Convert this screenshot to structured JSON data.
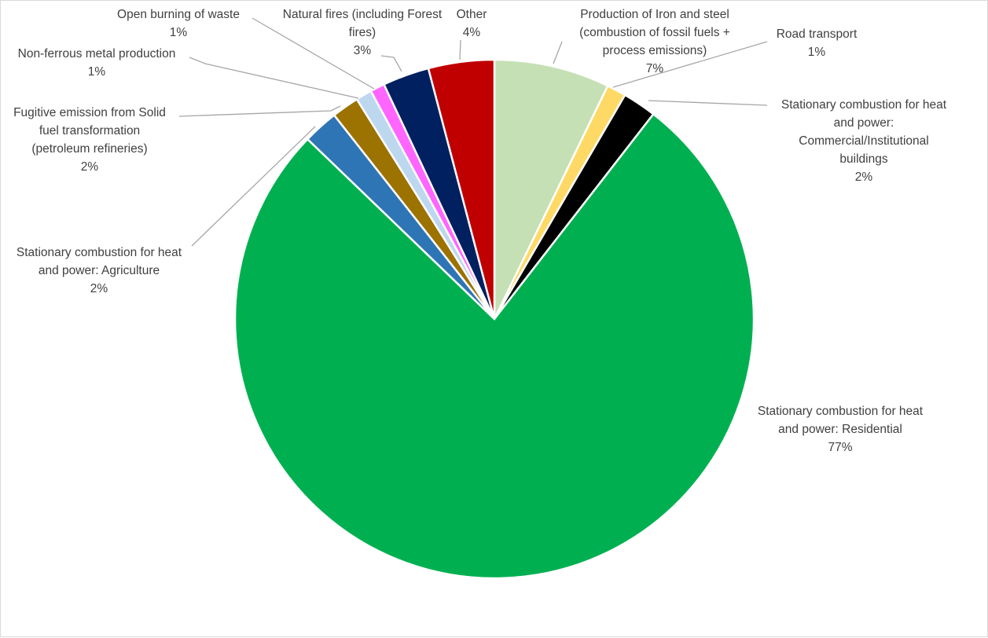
{
  "chart_data": {
    "type": "pie",
    "title": "",
    "legend": "none",
    "slices": [
      {
        "label": [
          "Production of Iron and steel",
          "(combustion of fossil fuels +",
          "process emissions)"
        ],
        "pct_label": "7%",
        "value": 7.2,
        "color": "#c5e0b4",
        "name": "iron-steel"
      },
      {
        "label": [
          "Road transport"
        ],
        "pct_label": "1%",
        "value": 1.2,
        "color": "#ffd966",
        "name": "road-transport"
      },
      {
        "label": [
          "Stationary combustion for heat",
          "and power:",
          "Commercial/Institutional",
          "buildings"
        ],
        "pct_label": "2%",
        "value": 2.1,
        "color": "#000000",
        "name": "commercial-institutional"
      },
      {
        "label": [
          "Stationary combustion for heat",
          "and power: Residential"
        ],
        "pct_label": "77%",
        "value": 76.7,
        "color": "#00b050",
        "name": "residential"
      },
      {
        "label": [
          "Stationary combustion for heat",
          "and power: Agriculture"
        ],
        "pct_label": "2%",
        "value": 2.2,
        "color": "#2e75b6",
        "name": "agriculture"
      },
      {
        "label": [
          "Fugitive emission from Solid",
          "fuel transformation",
          "(petroleum refineries)"
        ],
        "pct_label": "2%",
        "value": 1.7,
        "color": "#9c7200",
        "name": "fugitive-emission"
      },
      {
        "label": [
          "Non-ferrous metal production"
        ],
        "pct_label": "1%",
        "value": 1.0,
        "color": "#bdd7ee",
        "name": "non-ferrous-metal"
      },
      {
        "label": [
          "Open burning of waste"
        ],
        "pct_label": "1%",
        "value": 0.9,
        "color": "#ff66ff",
        "name": "open-burning-waste"
      },
      {
        "label": [
          "Natural fires (including Forest",
          "fires)"
        ],
        "pct_label": "3%",
        "value": 2.9,
        "color": "#002060",
        "name": "natural-fires"
      },
      {
        "label": [
          "Other"
        ],
        "pct_label": "4%",
        "value": 4.1,
        "color": "#c00000",
        "name": "other"
      }
    ]
  }
}
